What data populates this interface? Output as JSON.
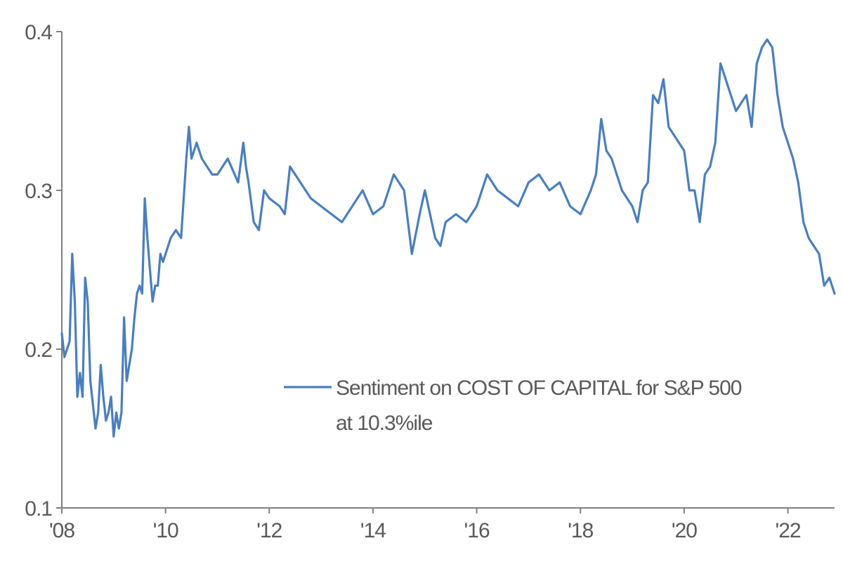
{
  "chart_data": {
    "type": "line",
    "title": "",
    "xlabel": "",
    "ylabel": "",
    "ylim": [
      0.1,
      0.4
    ],
    "xlim": [
      2008,
      2022.9
    ],
    "yticks": [
      {
        "value": 0.1,
        "label": "0.1"
      },
      {
        "value": 0.2,
        "label": "0.2"
      },
      {
        "value": 0.3,
        "label": "0.3"
      },
      {
        "value": 0.4,
        "label": "0.4"
      }
    ],
    "xticks": [
      {
        "value": 2008,
        "label": "'08"
      },
      {
        "value": 2010,
        "label": "'10"
      },
      {
        "value": 2012,
        "label": "'12"
      },
      {
        "value": 2014,
        "label": "'14"
      },
      {
        "value": 2016,
        "label": "'16"
      },
      {
        "value": 2018,
        "label": "'18"
      },
      {
        "value": 2020,
        "label": "'20"
      },
      {
        "value": 2022,
        "label": "'22"
      }
    ],
    "legend": {
      "placement": "center-right",
      "line1": "Sentiment on COST OF CAPITAL for S&P 500",
      "line2": "at 10.3%ile"
    },
    "colors": {
      "series": "#4a7ebf",
      "axis": "#808080",
      "text": "#595959"
    },
    "series": [
      {
        "name": "Sentiment on COST OF CAPITAL for S&P 500",
        "x": [
          2008.0,
          2008.05,
          2008.1,
          2008.15,
          2008.2,
          2008.25,
          2008.3,
          2008.35,
          2008.4,
          2008.45,
          2008.5,
          2008.55,
          2008.6,
          2008.65,
          2008.7,
          2008.75,
          2008.8,
          2008.85,
          2008.9,
          2008.95,
          2009.0,
          2009.05,
          2009.1,
          2009.15,
          2009.2,
          2009.25,
          2009.3,
          2009.35,
          2009.4,
          2009.45,
          2009.5,
          2009.55,
          2009.6,
          2009.65,
          2009.7,
          2009.75,
          2009.8,
          2009.85,
          2009.9,
          2009.95,
          2010.0,
          2010.1,
          2010.2,
          2010.3,
          2010.4,
          2010.45,
          2010.5,
          2010.6,
          2010.7,
          2010.8,
          2010.9,
          2011.0,
          2011.2,
          2011.4,
          2011.5,
          2011.55,
          2011.6,
          2011.7,
          2011.8,
          2011.9,
          2012.0,
          2012.2,
          2012.3,
          2012.4,
          2012.6,
          2012.8,
          2013.0,
          2013.2,
          2013.4,
          2013.6,
          2013.8,
          2014.0,
          2014.2,
          2014.4,
          2014.6,
          2014.75,
          2014.9,
          2015.0,
          2015.2,
          2015.3,
          2015.4,
          2015.6,
          2015.8,
          2016.0,
          2016.2,
          2016.4,
          2016.6,
          2016.8,
          2017.0,
          2017.2,
          2017.4,
          2017.6,
          2017.8,
          2018.0,
          2018.2,
          2018.3,
          2018.4,
          2018.5,
          2018.6,
          2018.8,
          2019.0,
          2019.1,
          2019.2,
          2019.3,
          2019.4,
          2019.5,
          2019.6,
          2019.7,
          2019.8,
          2019.9,
          2020.0,
          2020.1,
          2020.2,
          2020.3,
          2020.4,
          2020.5,
          2020.6,
          2020.7,
          2020.8,
          2020.9,
          2021.0,
          2021.2,
          2021.3,
          2021.4,
          2021.5,
          2021.6,
          2021.7,
          2021.8,
          2021.9,
          2022.0,
          2022.1,
          2022.2,
          2022.3,
          2022.4,
          2022.5,
          2022.6,
          2022.7,
          2022.8,
          2022.9
        ],
        "values": [
          0.21,
          0.195,
          0.2,
          0.205,
          0.26,
          0.23,
          0.17,
          0.185,
          0.17,
          0.245,
          0.23,
          0.18,
          0.165,
          0.15,
          0.16,
          0.19,
          0.17,
          0.155,
          0.16,
          0.17,
          0.145,
          0.16,
          0.15,
          0.16,
          0.22,
          0.18,
          0.19,
          0.2,
          0.22,
          0.235,
          0.24,
          0.235,
          0.295,
          0.27,
          0.25,
          0.23,
          0.24,
          0.24,
          0.26,
          0.255,
          0.26,
          0.27,
          0.275,
          0.27,
          0.32,
          0.34,
          0.32,
          0.33,
          0.32,
          0.315,
          0.31,
          0.31,
          0.32,
          0.305,
          0.33,
          0.315,
          0.305,
          0.28,
          0.275,
          0.3,
          0.295,
          0.29,
          0.285,
          0.315,
          0.305,
          0.295,
          0.29,
          0.285,
          0.28,
          0.29,
          0.3,
          0.285,
          0.29,
          0.31,
          0.3,
          0.26,
          0.285,
          0.3,
          0.27,
          0.265,
          0.28,
          0.285,
          0.28,
          0.29,
          0.31,
          0.3,
          0.295,
          0.29,
          0.305,
          0.31,
          0.3,
          0.305,
          0.29,
          0.285,
          0.3,
          0.31,
          0.345,
          0.325,
          0.32,
          0.3,
          0.29,
          0.28,
          0.3,
          0.305,
          0.36,
          0.355,
          0.37,
          0.34,
          0.335,
          0.33,
          0.325,
          0.3,
          0.3,
          0.28,
          0.31,
          0.315,
          0.33,
          0.38,
          0.37,
          0.36,
          0.35,
          0.36,
          0.34,
          0.38,
          0.39,
          0.395,
          0.39,
          0.36,
          0.34,
          0.33,
          0.32,
          0.305,
          0.28,
          0.27,
          0.265,
          0.26,
          0.24,
          0.245,
          0.235
        ]
      }
    ]
  }
}
